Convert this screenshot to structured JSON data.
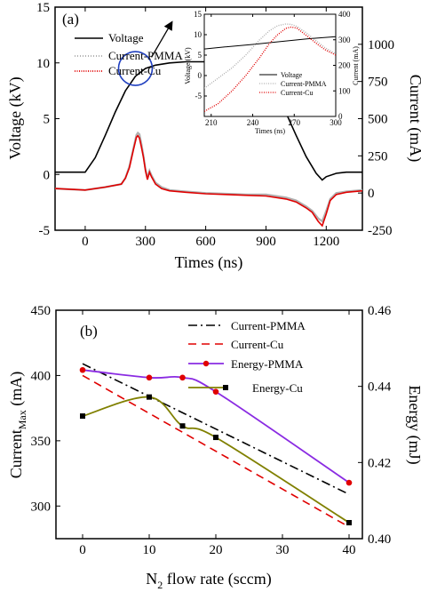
{
  "chart_data": [
    {
      "panel_label": "(a)",
      "type": "line",
      "xlabel": "Times (ns)",
      "ylabel_left": "Voltage (kV)",
      "ylabel_right": "Current (mA)",
      "xlim": [
        -150,
        1380
      ],
      "ylim_left": [
        -5,
        15
      ],
      "ylim_right": [
        -250,
        1250
      ],
      "xticks": [
        0,
        300,
        600,
        900,
        1200
      ],
      "yticks_left": [
        -5,
        0,
        5,
        10,
        15
      ],
      "yticks_right": [
        -250,
        0,
        250,
        500,
        750,
        1000
      ],
      "legend_position": "top-left",
      "series": [
        {
          "name": "Voltage",
          "axis": "left",
          "color": "#000000",
          "x": [
            -150,
            0,
            50,
            100,
            150,
            200,
            250,
            300,
            350,
            420,
            500,
            600,
            700,
            800,
            850,
            900,
            950,
            1000,
            1050,
            1100,
            1150,
            1180,
            1200,
            1250,
            1300,
            1380
          ],
          "y": [
            0.2,
            0.2,
            1.5,
            3.5,
            5.6,
            7.5,
            8.8,
            9.5,
            9.8,
            10.0,
            10.1,
            10.1,
            10.1,
            10.1,
            10.1,
            9.3,
            7.5,
            5.5,
            3.5,
            1.6,
            0.1,
            -0.5,
            -0.2,
            0.1,
            0.2,
            0.2
          ]
        },
        {
          "name": "Current-PMMA",
          "axis": "right",
          "color": "#b0b0b0",
          "x": [
            -150,
            0,
            100,
            180,
            200,
            220,
            240,
            255,
            262,
            270,
            280,
            290,
            300,
            310,
            320,
            330,
            350,
            380,
            420,
            500,
            600,
            700,
            800,
            900,
            1000,
            1050,
            1100,
            1130,
            1160,
            1180,
            1200,
            1220,
            1250,
            1300,
            1380
          ],
          "y": [
            30,
            20,
            40,
            60,
            100,
            180,
            300,
            390,
            405,
            395,
            330,
            250,
            160,
            100,
            150,
            120,
            70,
            40,
            20,
            10,
            0,
            -5,
            -10,
            -10,
            -30,
            -50,
            -90,
            -120,
            -170,
            -190,
            -120,
            -40,
            0,
            10,
            20
          ]
        },
        {
          "name": "Current-Cu",
          "axis": "right",
          "color": "#e00000",
          "x": [
            -150,
            0,
            100,
            180,
            200,
            220,
            240,
            255,
            262,
            270,
            280,
            290,
            300,
            310,
            320,
            330,
            350,
            380,
            420,
            500,
            600,
            700,
            800,
            900,
            1000,
            1050,
            1100,
            1130,
            1160,
            1180,
            1200,
            1220,
            1250,
            1300,
            1380
          ],
          "y": [
            30,
            20,
            40,
            60,
            100,
            170,
            290,
            375,
            385,
            370,
            310,
            240,
            150,
            90,
            140,
            110,
            60,
            30,
            15,
            5,
            -5,
            -10,
            -15,
            -20,
            -40,
            -60,
            -100,
            -130,
            -190,
            -220,
            -140,
            -50,
            -10,
            5,
            15
          ]
        }
      ],
      "annotations": [
        {
          "type": "circle",
          "x": 250,
          "y_left": 9.5
        },
        {
          "type": "arrow",
          "from": [
            330,
            10.5
          ],
          "to": [
            430,
            13.6
          ]
        }
      ],
      "inset": {
        "xlabel": "Times (ns)",
        "ylabel_left": "Voltage (kV)",
        "ylabel_right": "Current (mA)",
        "xlim": [
          205,
          300
        ],
        "ylim_left": [
          -10,
          15
        ],
        "ylim_right": [
          0,
          400
        ],
        "xticks": [
          210,
          240,
          270,
          300
        ],
        "yticks_left": [
          -5,
          0,
          5,
          10,
          15
        ],
        "yticks_right": [
          0,
          100,
          200,
          300,
          400
        ],
        "legend_position": "bottom-right",
        "series": [
          {
            "name": "Voltage",
            "axis": "left",
            "color": "#000000",
            "x": [
              205,
              220,
              240,
              260,
              280,
              300
            ],
            "y": [
              6.5,
              7.0,
              7.6,
              8.3,
              9.0,
              9.5
            ]
          },
          {
            "name": "Current-PMMA",
            "axis": "right",
            "color": "#b0b0b0",
            "x": [
              205,
              215,
              225,
              235,
              245,
              252,
              258,
              264,
              268,
              272,
              278,
              285,
              292,
              300
            ],
            "y": [
              110,
              150,
              190,
              240,
              300,
              335,
              355,
              362,
              360,
              352,
              330,
              300,
              270,
              245
            ]
          },
          {
            "name": "Current-Cu",
            "axis": "right",
            "color": "#e00000",
            "x": [
              205,
              215,
              225,
              235,
              245,
              252,
              258,
              264,
              268,
              272,
              278,
              285,
              292,
              300
            ],
            "y": [
              20,
              50,
              100,
              160,
              230,
              285,
              320,
              345,
              350,
              345,
              320,
              290,
              262,
              240
            ]
          }
        ]
      }
    },
    {
      "panel_label": "(b)",
      "type": "line",
      "xlabel": "N",
      "xlabel_sub": "2",
      "xlabel_rest": " flow rate (sccm)",
      "ylabel_left": "Current",
      "ylabel_left_sub": "Max",
      "ylabel_left_rest": " (mA)",
      "ylabel_right": "Energy (mJ)",
      "xlim": [
        -4,
        42
      ],
      "ylim_left": [
        275,
        450
      ],
      "ylim_right": [
        0.4,
        0.46
      ],
      "xticks": [
        0,
        10,
        20,
        30,
        40
      ],
      "yticks_left": [
        300,
        350,
        400,
        450
      ],
      "yticks_right": [
        0.4,
        0.42,
        0.44,
        0.46
      ],
      "legend_position": "top-right",
      "series": [
        {
          "name": "Current-PMMA",
          "axis": "left",
          "color": "#000000",
          "dash": "dash-dot",
          "x": [
            0,
            40
          ],
          "y": [
            409,
            309
          ]
        },
        {
          "name": "Current-Cu",
          "axis": "left",
          "color": "#e00000",
          "dash": "dash",
          "x": [
            0,
            40
          ],
          "y": [
            400,
            284
          ]
        },
        {
          "name": "Energy-PMMA",
          "axis": "right",
          "color": "#8a2be2",
          "marker": "circle",
          "marker_color": "#e00000",
          "x": [
            0,
            10,
            15,
            20,
            40
          ],
          "y": [
            0.4443,
            0.4423,
            0.4423,
            0.4386,
            0.4147
          ]
        },
        {
          "name": "Energy-Cu",
          "axis": "right",
          "color": "#808000",
          "marker": "square",
          "marker_color": "#000000",
          "x": [
            0,
            10,
            15,
            20,
            40
          ],
          "y": [
            0.4322,
            0.4372,
            0.4296,
            0.4266,
            0.4042
          ]
        }
      ]
    }
  ]
}
